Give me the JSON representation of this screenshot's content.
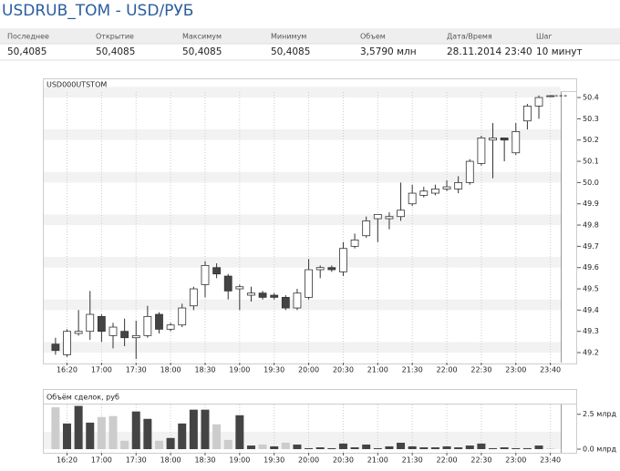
{
  "header": {
    "title": "USDRUB_TOM - USD/РУБ"
  },
  "table": {
    "columns": [
      "Последнее",
      "Открытие",
      "Максимум",
      "Минимум",
      "Объем",
      "Дата/Время",
      "Шаг"
    ],
    "rows": [
      [
        "50,4085",
        "50,4085",
        "50,4085",
        "50,4085",
        "3,5790 млн",
        "28.11.2014 23:40",
        "10 минут"
      ]
    ]
  },
  "chart_data": [
    {
      "type": "candlestick",
      "title": "USD000UTSTOM",
      "open": [
        49.24,
        49.19,
        49.29,
        49.3,
        49.37,
        49.28,
        49.3,
        49.27,
        49.28,
        49.38,
        49.31,
        49.33,
        49.42,
        49.52,
        49.6,
        49.56,
        49.5,
        49.47,
        49.48,
        49.47,
        49.46,
        49.41,
        49.46,
        49.59,
        49.6,
        49.58,
        49.7,
        49.75,
        49.83,
        49.83,
        49.84,
        49.9,
        49.94,
        49.95,
        49.97,
        49.97,
        50.0,
        50.09,
        50.2,
        50.21,
        50.14,
        50.29,
        50.36,
        50.4085
      ],
      "high": [
        49.27,
        49.31,
        49.4,
        49.49,
        49.38,
        49.34,
        49.36,
        49.35,
        49.42,
        49.39,
        49.34,
        49.43,
        49.51,
        49.63,
        49.62,
        49.57,
        49.52,
        49.51,
        49.49,
        49.48,
        49.47,
        49.5,
        49.64,
        49.61,
        49.61,
        49.72,
        49.76,
        49.84,
        49.85,
        49.86,
        50.0,
        49.99,
        49.98,
        49.99,
        50.01,
        50.03,
        50.11,
        50.22,
        50.28,
        50.21,
        50.28,
        50.37,
        50.41,
        50.4085
      ],
      "low": [
        49.19,
        49.18,
        49.28,
        49.26,
        49.25,
        49.22,
        49.23,
        49.17,
        49.27,
        49.29,
        49.3,
        49.32,
        49.4,
        49.46,
        49.55,
        49.45,
        49.4,
        49.44,
        49.45,
        49.45,
        49.4,
        49.4,
        49.45,
        49.55,
        49.58,
        49.56,
        49.69,
        49.74,
        49.72,
        49.78,
        49.82,
        49.89,
        49.93,
        49.94,
        49.96,
        49.95,
        49.99,
        50.08,
        50.02,
        50.1,
        50.13,
        50.25,
        50.3,
        50.4085
      ],
      "close": [
        49.21,
        49.3,
        49.3,
        49.38,
        49.3,
        49.32,
        49.27,
        49.28,
        49.37,
        49.31,
        49.33,
        49.41,
        49.5,
        49.61,
        49.57,
        49.49,
        49.51,
        49.48,
        49.46,
        49.46,
        49.41,
        49.48,
        49.59,
        49.6,
        49.59,
        49.69,
        49.73,
        49.82,
        49.85,
        49.84,
        49.87,
        49.95,
        49.96,
        49.97,
        49.98,
        50.0,
        50.1,
        50.21,
        50.21,
        50.2,
        50.24,
        50.36,
        50.4,
        50.4085
      ],
      "up_color": "#ffffff",
      "down_color": "#444444",
      "xlim": [
        -1.1,
        43.9
      ],
      "ylim": [
        49.153,
        50.426
      ],
      "xticks": [
        {
          "value": 1,
          "label": "16:20"
        },
        {
          "value": 4,
          "label": "17:00"
        },
        {
          "value": 7,
          "label": "17:30"
        },
        {
          "value": 10,
          "label": "18:00"
        },
        {
          "value": 13,
          "label": "18:30"
        },
        {
          "value": 16,
          "label": "19:00"
        },
        {
          "value": 19,
          "label": "19:30"
        },
        {
          "value": 22,
          "label": "20:00"
        },
        {
          "value": 25,
          "label": "20:30"
        },
        {
          "value": 28,
          "label": "21:00"
        },
        {
          "value": 31,
          "label": "21:30"
        },
        {
          "value": 34,
          "label": "22:00"
        },
        {
          "value": 37,
          "label": "22:30"
        },
        {
          "value": 40,
          "label": "23:00"
        },
        {
          "value": 43,
          "label": "23:40"
        }
      ],
      "yticks": [
        49.2,
        49.3,
        49.4,
        49.5,
        49.6,
        49.7,
        49.8,
        49.9,
        {
          "value": 50,
          "label": "50.0"
        },
        50.1,
        50.2,
        50.3,
        50.4
      ],
      "grid": true
    },
    {
      "type": "bar",
      "title": "Объём сделок, руб",
      "values": [
        3.0,
        1.84,
        3.1,
        1.9,
        2.3,
        2.37,
        0.6,
        2.7,
        2.17,
        0.6,
        0.8,
        1.84,
        2.83,
        2.83,
        1.78,
        0.66,
        2.43,
        0.26,
        0.33,
        0.2,
        0.46,
        0.33,
        0.07,
        0.13,
        0.07,
        0.4,
        0.13,
        0.33,
        0.07,
        0.2,
        0.46,
        0.2,
        0.13,
        0.13,
        0.2,
        0.13,
        0.26,
        0.4,
        0.07,
        0.13,
        0.07,
        0.07,
        0.26,
        0.01
      ],
      "colors": [
        "#cccccc",
        "#444444",
        "#444444",
        "#444444",
        "#cccccc",
        "#cccccc",
        "#cccccc",
        "#444444",
        "#444444",
        "#cccccc",
        "#444444",
        "#444444",
        "#444444",
        "#444444",
        "#cccccc",
        "#cccccc",
        "#444444",
        "#444444",
        "#cccccc",
        "#444444",
        "#cccccc",
        "#444444",
        "#444444",
        "#444444",
        "#444444",
        "#444444",
        "#444444",
        "#444444",
        "#444444",
        "#444444",
        "#444444",
        "#444444",
        "#444444",
        "#444444",
        "#444444",
        "#444444",
        "#444444",
        "#444444",
        "#444444",
        "#444444",
        "#444444",
        "#444444",
        "#444444",
        "#444444"
      ],
      "xlim": [
        -1.1,
        43.9
      ],
      "ylim": [
        -0.26,
        3.2
      ],
      "xticks": [
        {
          "value": 1,
          "label": "16:20"
        },
        {
          "value": 4,
          "label": "17:00"
        },
        {
          "value": 7,
          "label": "17:30"
        },
        {
          "value": 10,
          "label": "18:00"
        },
        {
          "value": 13,
          "label": "18:30"
        },
        {
          "value": 16,
          "label": "19:00"
        },
        {
          "value": 19,
          "label": "19:30"
        },
        {
          "value": 22,
          "label": "20:00"
        },
        {
          "value": 25,
          "label": "20:30"
        },
        {
          "value": 28,
          "label": "21:00"
        },
        {
          "value": 31,
          "label": "21:30"
        },
        {
          "value": 34,
          "label": "22:00"
        },
        {
          "value": 37,
          "label": "22:30"
        },
        {
          "value": 40,
          "label": "23:00"
        },
        {
          "value": 43,
          "label": "23:40"
        }
      ],
      "yticks": [
        {
          "value": 0,
          "label": "0.0 млрд"
        },
        {
          "value": 2.5,
          "label": "2.5 млрд"
        }
      ],
      "grid": true
    }
  ]
}
